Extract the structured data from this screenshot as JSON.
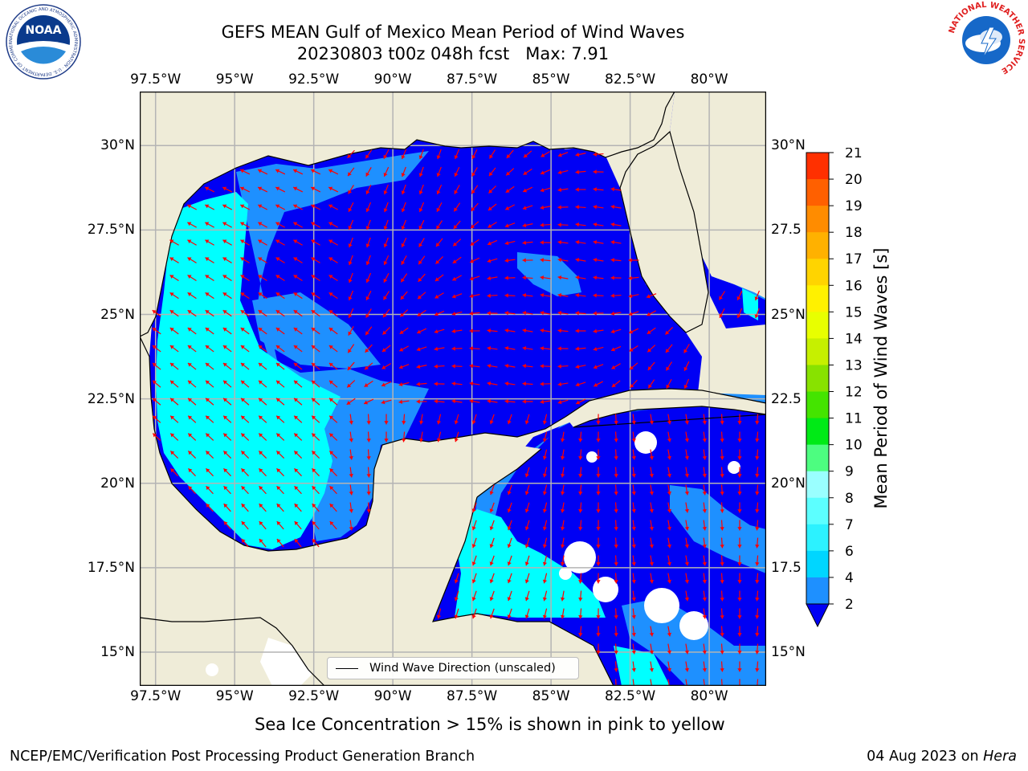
{
  "title": {
    "line1": "GEFS MEAN Gulf of Mexico Mean Period of Wind Waves",
    "line2": "20230803 t00z 048h fcst   Max: 7.91"
  },
  "logos": {
    "left": {
      "name": "noaa-logo",
      "text": "NOAA",
      "ring_text": "NATIONAL OCEANIC AND ATMOSPHERIC ADMINISTRATION · U.S. DEPARTMENT OF COMMERCE"
    },
    "right": {
      "name": "nws-logo",
      "ring_text": "NATIONAL WEATHER SERVICE"
    }
  },
  "map": {
    "lon_labels": [
      "97.5°W",
      "95°W",
      "92.5°W",
      "90°W",
      "87.5°W",
      "85°W",
      "82.5°W",
      "80°W"
    ],
    "lat_labels_left": [
      "30°N",
      "27.5°N",
      "25°N",
      "22.5°N",
      "20°N",
      "17.5°N",
      "15°N"
    ],
    "lat_labels_right": [
      "30°N",
      "27.5",
      "25°N",
      "22.5",
      "20°N",
      "17.5",
      "15°N"
    ],
    "lon_range": [
      -98,
      -78.2
    ],
    "lat_range": [
      14,
      31.6
    ],
    "gridlines": true,
    "colors": {
      "land": "#efecd8",
      "coast": "#000000",
      "grid": "#b4b4b4",
      "arrow": "#ff0000",
      "band_2_4": "#0000f4",
      "band_4_6": "#1e90ff",
      "band_6_8": "#00ffff"
    },
    "legend": "Wind Wave Direction (unscaled)"
  },
  "colorbar": {
    "label": "Mean Period of Wind Waves [s]",
    "ticks": [
      "2",
      "4",
      "6",
      "7",
      "8",
      "9",
      "10",
      "11",
      "12",
      "13",
      "14",
      "15",
      "16",
      "17",
      "18",
      "19",
      "20",
      "21"
    ],
    "colors": [
      "#1e90ff",
      "#00d6ff",
      "#2cf2ff",
      "#5cffff",
      "#9affff",
      "#4dfd80",
      "#00ea16",
      "#44e400",
      "#88e200",
      "#c6f000",
      "#e8ff00",
      "#fff100",
      "#ffd400",
      "#ffb100",
      "#ff8c00",
      "#ff6000",
      "#ff3000"
    ],
    "extend_color": "#0000f4"
  },
  "footnote": "Sea Ice Concentration > 15% is shown in pink to yellow",
  "credit_left": "NCEP/EMC/Verification Post Processing Product Generation Branch",
  "credit_right_date": "04 Aug 2023 on ",
  "credit_right_host": "Hera"
}
